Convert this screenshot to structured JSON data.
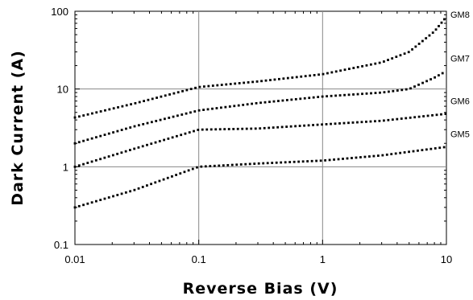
{
  "chart_data": {
    "type": "scatter",
    "xlabel": "Reverse Bias (V)",
    "ylabel": "Dark Current (A)",
    "xscale": "log",
    "yscale": "log",
    "xlim": [
      0.01,
      10
    ],
    "ylim": [
      0.1,
      100
    ],
    "xticks": [
      0.01,
      0.1,
      1,
      10
    ],
    "xtick_labels": [
      "0.01",
      "0.1",
      "1",
      "10"
    ],
    "yticks": [
      0.1,
      1,
      10,
      100
    ],
    "ytick_labels": [
      "0.1",
      "1",
      "10",
      "100"
    ],
    "grid": true,
    "series": [
      {
        "name": "GM8",
        "points": [
          [
            0.01,
            4.3
          ],
          [
            0.03,
            6.5
          ],
          [
            0.1,
            10.6
          ],
          [
            0.3,
            12.5
          ],
          [
            1,
            15.5
          ],
          [
            3,
            22
          ],
          [
            5,
            30
          ],
          [
            8,
            55
          ],
          [
            10,
            85
          ]
        ]
      },
      {
        "name": "GM7",
        "points": [
          [
            0.01,
            2.0
          ],
          [
            0.03,
            3.3
          ],
          [
            0.1,
            5.3
          ],
          [
            0.3,
            6.6
          ],
          [
            1,
            8.0
          ],
          [
            3,
            9.0
          ],
          [
            5,
            10.0
          ],
          [
            8,
            14
          ],
          [
            10,
            17
          ]
        ]
      },
      {
        "name": "GM6",
        "points": [
          [
            0.01,
            1.0
          ],
          [
            0.03,
            1.7
          ],
          [
            0.1,
            3.0
          ],
          [
            0.3,
            3.1
          ],
          [
            1,
            3.5
          ],
          [
            3,
            3.9
          ],
          [
            10,
            4.8
          ]
        ]
      },
      {
        "name": "GM5",
        "points": [
          [
            0.01,
            0.3
          ],
          [
            0.03,
            0.5
          ],
          [
            0.1,
            1.0
          ],
          [
            0.3,
            1.1
          ],
          [
            1,
            1.2
          ],
          [
            3,
            1.4
          ],
          [
            10,
            1.8
          ]
        ]
      }
    ]
  }
}
